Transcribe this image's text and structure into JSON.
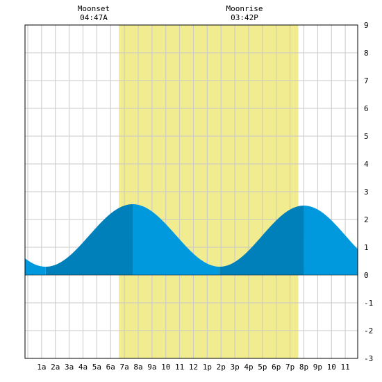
{
  "chart_data": {
    "type": "area",
    "x_tick_labels": [
      "1a",
      "2a",
      "3a",
      "4a",
      "5a",
      "6a",
      "7a",
      "8a",
      "9a",
      "10",
      "11",
      "12",
      "1p",
      "2p",
      "3p",
      "4p",
      "5p",
      "6p",
      "7p",
      "8p",
      "9p",
      "10",
      "11"
    ],
    "x_range_hours": [
      -0.2,
      23.9
    ],
    "ylim": [
      -3,
      9
    ],
    "y_ticks": [
      -3,
      -2,
      -1,
      0,
      1,
      2,
      3,
      4,
      5,
      6,
      7,
      8,
      9
    ],
    "grid": true,
    "daylight": {
      "start_hour": 6.6,
      "end_hour": 19.6
    },
    "moon_events": [
      {
        "label": "Moonset",
        "time": "04:47A",
        "hour": 4.78
      },
      {
        "label": "Moonrise",
        "time": "03:42P",
        "hour": 15.7
      }
    ],
    "tide_extremes": [
      {
        "hour": 1.3,
        "height": 0.3,
        "type": "low"
      },
      {
        "hour": 7.6,
        "height": 2.55,
        "type": "high"
      },
      {
        "hour": 13.9,
        "height": 0.3,
        "type": "low"
      },
      {
        "hour": 20.0,
        "height": 2.5,
        "type": "high"
      }
    ],
    "start_height": 0.45,
    "end_height": 0.92,
    "colors": {
      "daylight": "#f0ec8f",
      "tide_light": "#0099dd",
      "tide_dark": "#0080bb",
      "grid": "#c8c8c8",
      "frame": "#000000"
    }
  }
}
